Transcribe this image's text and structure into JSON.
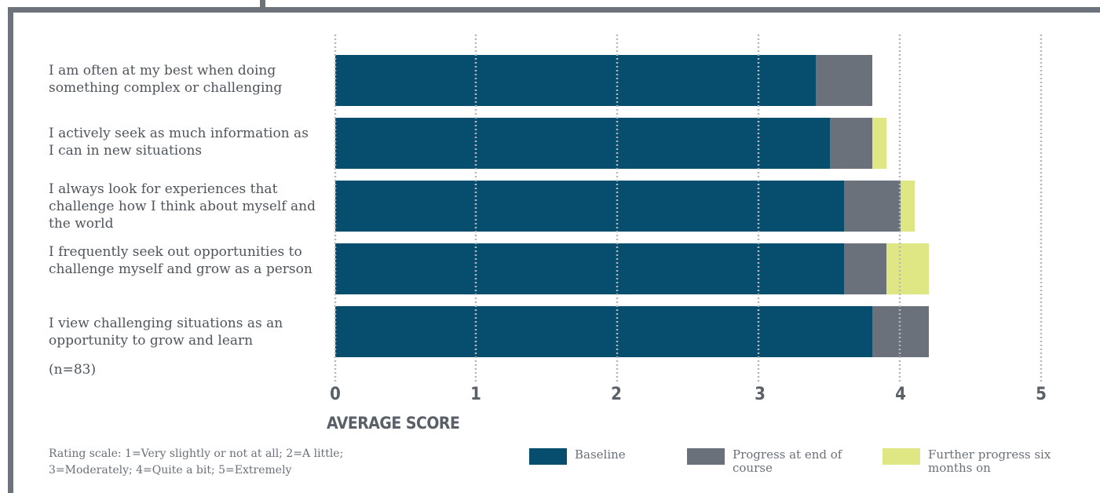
{
  "colors": {
    "baseline": "#074d6e",
    "progress_end": "#6a717a",
    "further": "#dfe684",
    "frame": "#6d737b"
  },
  "chart_data": {
    "type": "bar",
    "orientation": "horizontal",
    "stacked": true,
    "categories": [
      "I am often at my best when doing something complex or challenging",
      "I actively seek as much information as I can in new situations",
      "I always look for experiences that challenge how I think about myself and the world",
      "I frequently seek out opportunities to challenge myself and grow as a person",
      "I view challenging situations as an opportunity to grow and learn"
    ],
    "series": [
      {
        "name": "Baseline",
        "values": [
          3.4,
          3.5,
          3.6,
          3.6,
          3.8
        ]
      },
      {
        "name": "Progress at end of course",
        "values": [
          0.4,
          0.3,
          0.4,
          0.3,
          0.4
        ]
      },
      {
        "name": "Further progress six months on",
        "values": [
          0.0,
          0.1,
          0.1,
          0.3,
          0.0
        ]
      }
    ],
    "xlabel": "AVERAGE SCORE",
    "xlim": [
      0,
      5
    ],
    "xticks": [
      "0",
      "1",
      "2",
      "3",
      "4",
      "5"
    ],
    "grid": "vertical dotted",
    "legend_position": "bottom",
    "note": "(n=83)",
    "scale_note": "Rating scale: 1=Very slightly or not at all; 2=A little; 3=Moderately; 4=Quite a bit; 5=Extremely"
  }
}
